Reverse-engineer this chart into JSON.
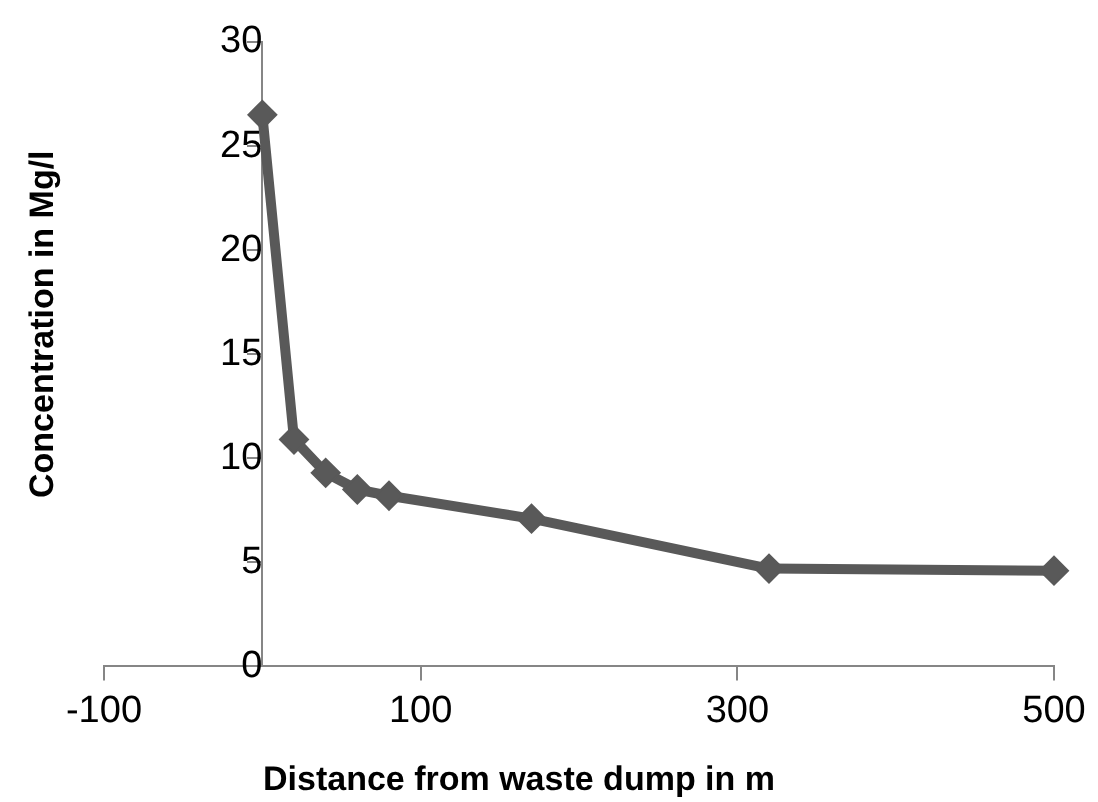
{
  "chart_data": {
    "type": "line",
    "xlabel": "Distance from waste dump in m",
    "ylabel": "Concentration in Mg/l",
    "x": [
      0,
      20,
      40,
      60,
      80,
      170,
      320,
      500
    ],
    "series": [
      {
        "color": "#595959",
        "values": [
          26.5,
          10.9,
          9.3,
          8.5,
          8.2,
          7.1,
          4.7,
          4.6
        ]
      }
    ],
    "xlim": [
      -100,
      500
    ],
    "xticks": [
      -100,
      100,
      300,
      500
    ],
    "ylim": [
      0,
      30
    ],
    "yticks": [
      0,
      5,
      10,
      15,
      20,
      25,
      30
    ],
    "grid": false,
    "legend": false,
    "marker": "diamond",
    "line_style": "solid"
  }
}
